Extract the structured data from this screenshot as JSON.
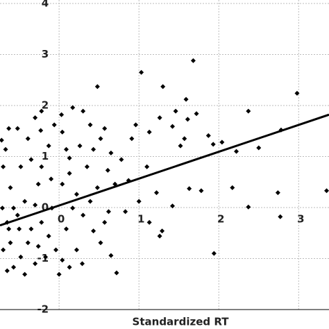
{
  "chart_data": {
    "type": "scatter",
    "x_label": "Standardized RT",
    "color": "#000000",
    "grid": true,
    "xlim": [
      -0.74,
      3.38
    ],
    "ylim": [
      -2,
      4
    ],
    "xticks": [
      0,
      1,
      2,
      3
    ],
    "yticks": [
      -2,
      -1,
      0,
      1,
      2,
      3,
      4
    ],
    "x": [
      1.68,
      1.03,
      0.48,
      1.3,
      2.98,
      1.59,
      2.37,
      2.78,
      3.35,
      2.37,
      2.74,
      1.94,
      2.77,
      1.29,
      1.42,
      1.63,
      1.78,
      1.22,
      1.1,
      1.52,
      1.93,
      2.04,
      2.22,
      2.5,
      2.17,
      1.57,
      1.42,
      1.61,
      1.72,
      1.87,
      1.46,
      1.26,
      1.13,
      0.91,
      0.78,
      0.7,
      0.62,
      0.72,
      0.65,
      0.52,
      0.43,
      0.3,
      0.22,
      0.13,
      0.09,
      0.04,
      0.03,
      -0.06,
      -0.13,
      -0.22,
      -0.26,
      -0.3,
      -0.35,
      -0.39,
      -0.48,
      -0.57,
      -0.65,
      -0.7,
      -0.63,
      -0.52,
      -0.43,
      -0.61,
      -0.7,
      -0.67,
      -0.63,
      -0.52,
      -0.39,
      -0.35,
      -0.48,
      -0.57,
      -0.22,
      -0.13,
      -0.04,
      0.04,
      0.13,
      0.22,
      -0.17,
      -0.3,
      -0.43,
      -0.61,
      -0.09,
      0.09,
      0.17,
      0.39,
      0.48,
      0.35,
      0.26,
      0.39,
      0.57,
      0.3,
      0.17,
      -0.22,
      -0.3,
      0.52,
      0.65,
      0.96,
      0.87,
      1.0,
      0.83,
      1.13,
      0.61,
      0.43,
      -0.23,
      0.13,
      1.26,
      -0.71,
      -0.65,
      -0.5,
      -0.26,
      0.0,
      0.29,
      -0.1,
      0.04,
      0.57,
      -0.72
    ],
    "y": [
      2.88,
      2.65,
      2.37,
      2.37,
      2.24,
      2.12,
      1.89,
      1.52,
      0.33,
      0.01,
      0.29,
      -0.9,
      -0.18,
      -0.46,
      0.03,
      0.37,
      0.33,
      0.29,
      0.8,
      1.21,
      1.24,
      1.28,
      1.1,
      1.17,
      0.39,
      1.35,
      1.59,
      1.73,
      1.84,
      1.41,
      1.89,
      1.76,
      1.48,
      1.35,
      0.94,
      0.46,
      -0.08,
      -1.28,
      -0.94,
      -0.69,
      -0.46,
      -0.15,
      0.26,
      0.67,
      1.14,
      1.48,
      1.82,
      1.62,
      1.21,
      0.8,
      0.46,
      0.05,
      -0.42,
      -0.69,
      -0.97,
      -1.17,
      -1.24,
      -0.83,
      -0.42,
      -0.15,
      0.12,
      0.39,
      0.8,
      1.14,
      1.55,
      1.55,
      1.35,
      0.94,
      0.8,
      -0.01,
      -0.29,
      -0.56,
      -0.83,
      -1.03,
      -1.17,
      -0.83,
      -0.97,
      -1.1,
      -1.31,
      -0.69,
      -0.01,
      -0.42,
      -0.01,
      0.12,
      0.39,
      0.8,
      1.21,
      1.62,
      1.55,
      1.89,
      1.96,
      1.89,
      1.76,
      1.35,
      1.07,
      1.62,
      0.53,
      0.12,
      -0.08,
      -0.29,
      0.73,
      1.14,
      1.51,
      0.97,
      -0.56,
      -0.01,
      -0.29,
      -0.42,
      -0.76,
      -1.31,
      -1.1,
      0.56,
      0.46,
      -0.29,
      1.32
    ],
    "fit": {
      "x": [
        -0.74,
        3.38
      ],
      "y": [
        -0.35,
        1.82
      ]
    }
  }
}
